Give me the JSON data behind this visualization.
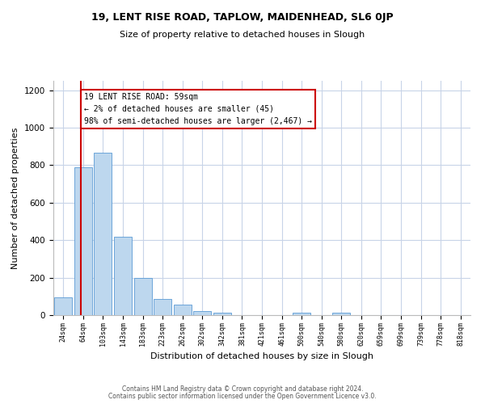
{
  "title": "19, LENT RISE ROAD, TAPLOW, MAIDENHEAD, SL6 0JP",
  "subtitle": "Size of property relative to detached houses in Slough",
  "xlabel": "Distribution of detached houses by size in Slough",
  "ylabel": "Number of detached properties",
  "bar_labels": [
    "24sqm",
    "64sqm",
    "103sqm",
    "143sqm",
    "183sqm",
    "223sqm",
    "262sqm",
    "302sqm",
    "342sqm",
    "381sqm",
    "421sqm",
    "461sqm",
    "500sqm",
    "540sqm",
    "580sqm",
    "620sqm",
    "659sqm",
    "699sqm",
    "739sqm",
    "778sqm",
    "818sqm"
  ],
  "bar_values": [
    95,
    790,
    865,
    420,
    200,
    85,
    55,
    20,
    13,
    0,
    0,
    0,
    13,
    0,
    13,
    0,
    0,
    0,
    0,
    0,
    0
  ],
  "bar_color": "#bdd7ee",
  "bar_edge_color": "#5b9bd5",
  "annotation_box_text": "19 LENT RISE ROAD: 59sqm\n← 2% of detached houses are smaller (45)\n98% of semi-detached houses are larger (2,467) →",
  "red_line_color": "#cc0000",
  "annotation_box_edge_color": "#cc0000",
  "ylim": [
    0,
    1250
  ],
  "yticks": [
    0,
    200,
    400,
    600,
    800,
    1000,
    1200
  ],
  "background_color": "#ffffff",
  "grid_color": "#c8d4e8",
  "footer_line1": "Contains HM Land Registry data © Crown copyright and database right 2024.",
  "footer_line2": "Contains public sector information licensed under the Open Government Licence v3.0."
}
